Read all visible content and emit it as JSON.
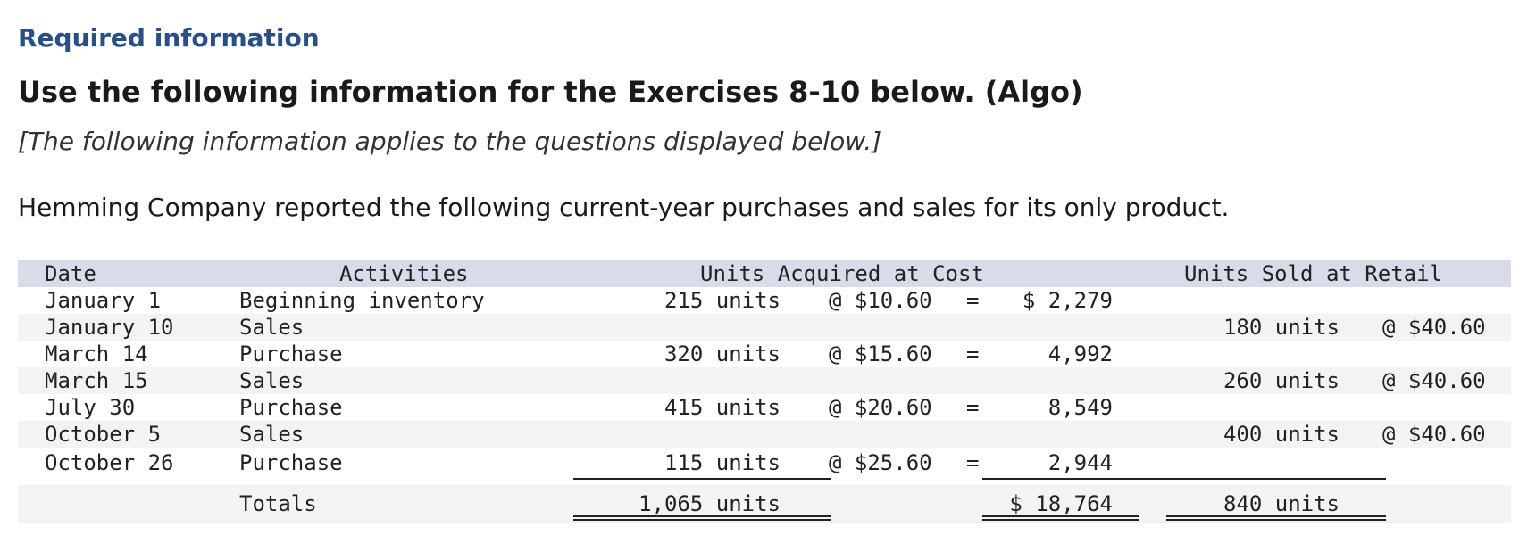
{
  "header_label": "Required information",
  "title": "Use the following information for the Exercises 8-10 below. (Algo)",
  "subtitle": "[The following information applies to the questions displayed below.]",
  "intro": "Hemming Company reported the following current-year purchases and sales for its only product.",
  "table": {
    "headers": {
      "date": "Date",
      "activities": "Activities",
      "acquired": "Units Acquired at Cost",
      "sold": "Units Sold at Retail"
    },
    "rows": [
      {
        "date": "January 1",
        "activity": "Beginning inventory",
        "units_acquired": "215 units",
        "unit_cost": "@ $10.60",
        "eq": "=",
        "total_cost": "$ 2,279",
        "units_sold": "",
        "retail_price": ""
      },
      {
        "date": "January 10",
        "activity": "Sales",
        "units_acquired": "",
        "unit_cost": "",
        "eq": "",
        "total_cost": "",
        "units_sold": "180 units",
        "retail_price": "@ $40.60"
      },
      {
        "date": "March 14",
        "activity": "Purchase",
        "units_acquired": "320 units",
        "unit_cost": "@ $15.60",
        "eq": "=",
        "total_cost": "4,992",
        "units_sold": "",
        "retail_price": ""
      },
      {
        "date": "March 15",
        "activity": "Sales",
        "units_acquired": "",
        "unit_cost": "",
        "eq": "",
        "total_cost": "",
        "units_sold": "260 units",
        "retail_price": "@ $40.60"
      },
      {
        "date": "July 30",
        "activity": "Purchase",
        "units_acquired": "415 units",
        "unit_cost": "@ $20.60",
        "eq": "=",
        "total_cost": "8,549",
        "units_sold": "",
        "retail_price": ""
      },
      {
        "date": "October 5",
        "activity": "Sales",
        "units_acquired": "",
        "unit_cost": "",
        "eq": "",
        "total_cost": "",
        "units_sold": "400 units",
        "retail_price": "@ $40.60"
      },
      {
        "date": "October 26",
        "activity": "Purchase",
        "units_acquired": "115 units",
        "unit_cost": "@ $25.60",
        "eq": "=",
        "total_cost": "2,944",
        "units_sold": "",
        "retail_price": ""
      }
    ],
    "totals": {
      "label": "Totals",
      "units_acquired": "1,065 units",
      "total_cost": "$ 18,764",
      "units_sold": "840 units"
    }
  },
  "colors": {
    "header_label": "#2a4f86",
    "table_header_bg": "#d7dce8",
    "row_shade_bg": "#f3f3f3"
  }
}
